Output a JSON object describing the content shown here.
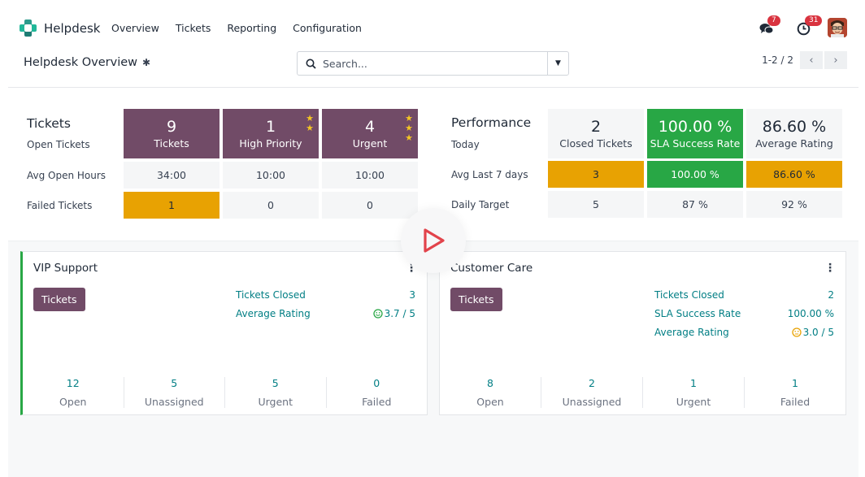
{
  "app": {
    "name": "Helpdesk"
  },
  "menu": [
    {
      "label": "Overview"
    },
    {
      "label": "Tickets"
    },
    {
      "label": "Reporting"
    },
    {
      "label": "Configuration"
    }
  ],
  "systray": {
    "messages_count": "7",
    "activities_count": "31",
    "messages_icon": "chat-bubbles-icon",
    "activities_icon": "clock-icon"
  },
  "control": {
    "title": "Helpdesk Overview",
    "search_placeholder": "Search...",
    "pager": "1-2 / 2"
  },
  "tickets": {
    "title": "Tickets",
    "row_labels": [
      "Open Tickets",
      "Avg Open Hours",
      "Failed Tickets"
    ],
    "columns": [
      {
        "value": "9",
        "label": "Tickets",
        "avg_hours": "34:00",
        "failed": "1",
        "stars": 0
      },
      {
        "value": "1",
        "label": "High Priority",
        "avg_hours": "10:00",
        "failed": "0",
        "stars": 2
      },
      {
        "value": "4",
        "label": "Urgent",
        "avg_hours": "10:00",
        "failed": "0",
        "stars": 3
      }
    ]
  },
  "performance": {
    "title": "Performance",
    "row_labels": [
      "Today",
      "Avg Last 7 days",
      "Daily Target"
    ],
    "columns": [
      {
        "value": "2",
        "label": "Closed Tickets",
        "avg7": "3",
        "target": "5"
      },
      {
        "value": "100.00 %",
        "label": "SLA Success Rate",
        "avg7": "100.00 %",
        "target": "87 %"
      },
      {
        "value": "86.60 %",
        "label": "Average Rating",
        "avg7": "86.60 %",
        "target": "92 %"
      }
    ]
  },
  "teams": [
    {
      "name": "VIP Support",
      "button": "Tickets",
      "kpis": [
        {
          "label": "Tickets Closed",
          "value": "3"
        },
        {
          "label": "Average Rating",
          "value": "3.7 / 5",
          "icon": "smile-face-icon"
        }
      ],
      "counts": [
        {
          "num": "12",
          "label": "Open"
        },
        {
          "num": "5",
          "label": "Unassigned"
        },
        {
          "num": "5",
          "label": "Urgent"
        },
        {
          "num": "0",
          "label": "Failed"
        }
      ]
    },
    {
      "name": "Customer Care",
      "button": "Tickets",
      "kpis": [
        {
          "label": "Tickets Closed",
          "value": "2"
        },
        {
          "label": "SLA Success Rate",
          "value": "100.00 %"
        },
        {
          "label": "Average Rating",
          "value": "3.0 / 5",
          "icon": "neutral-face-icon"
        }
      ],
      "counts": [
        {
          "num": "8",
          "label": "Open"
        },
        {
          "num": "2",
          "label": "Unassigned"
        },
        {
          "num": "1",
          "label": "Urgent"
        },
        {
          "num": "1",
          "label": "Failed"
        }
      ]
    }
  ],
  "colors": {
    "brand": "#714b67",
    "teal": "#017e84",
    "warning": "#e8a202",
    "success": "#28a745",
    "badge": "#d9333f"
  }
}
